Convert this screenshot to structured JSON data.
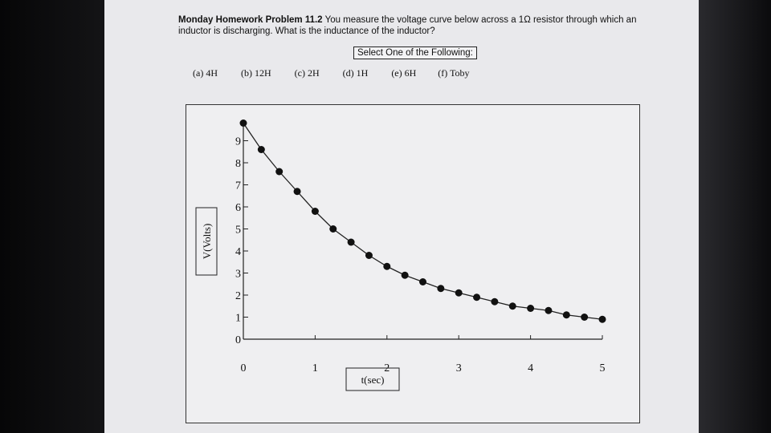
{
  "question": {
    "bold_title": "Monday Homework Problem 11.2",
    "text_line1": " You measure the voltage curve below across a 1Ω resistor through which an",
    "text_line2": "inductor is discharging. What is the inductance of the inductor?"
  },
  "select_label": "Select One of the Following:",
  "options": [
    "(a) 4H",
    "(b) 12H",
    "(c) 2H",
    "(d) 1H",
    "(e) 6H",
    "(f) Toby"
  ],
  "chart_data": {
    "type": "scatter",
    "xlabel": "t(sec)",
    "ylabel": "V(Volts)",
    "xlim": [
      0,
      5
    ],
    "ylim": [
      0,
      10
    ],
    "x_ticks": [
      "0",
      "1",
      "2",
      "3",
      "4",
      "5"
    ],
    "y_ticks": [
      "0",
      "1",
      "2",
      "3",
      "4",
      "5",
      "6",
      "7",
      "8",
      "9"
    ],
    "series": [
      {
        "x": [
          0,
          0.25,
          0.5,
          0.75,
          1.0,
          1.25,
          1.5,
          1.75,
          2.0,
          2.25,
          2.5,
          2.75,
          3.0,
          3.25,
          3.5,
          3.75,
          4.0,
          4.25,
          4.5,
          4.75,
          5.0
        ],
        "y": [
          9.8,
          8.6,
          7.6,
          6.7,
          5.8,
          5.0,
          4.4,
          3.8,
          3.3,
          2.9,
          2.6,
          2.3,
          2.1,
          1.9,
          1.7,
          1.5,
          1.4,
          1.3,
          1.1,
          1.0,
          0.9
        ]
      }
    ]
  }
}
